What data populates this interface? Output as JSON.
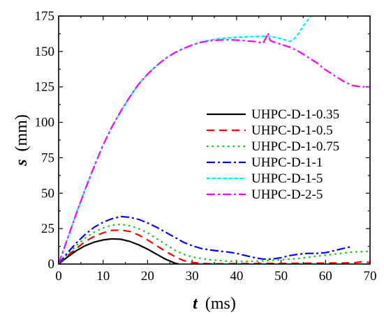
{
  "chart_data": {
    "type": "line",
    "xlabel_var": "t",
    "xlabel_unit": "(ms)",
    "ylabel_var": "s",
    "ylabel_unit": "(mm)",
    "xlim": [
      0,
      70
    ],
    "ylim": [
      0,
      175
    ],
    "xticks": [
      0,
      10,
      20,
      30,
      40,
      50,
      60,
      70
    ],
    "yticks": [
      0,
      25,
      50,
      75,
      100,
      125,
      150,
      175
    ],
    "grid": false,
    "legend_position": "right-middle",
    "series": [
      {
        "name": "UHPC-D-1-0.35",
        "color": "#000000",
        "dash": "solid",
        "x": [
          0,
          2,
          4,
          6,
          8,
          10,
          12,
          14,
          16,
          18,
          20,
          22,
          24,
          26,
          27
        ],
        "y": [
          0,
          5,
          9.5,
          13,
          15.5,
          17,
          17.8,
          17.5,
          16,
          13.5,
          10.5,
          7,
          3.5,
          0.8,
          0
        ]
      },
      {
        "name": "UHPC-D-1-0.5",
        "color": "#ff0000",
        "dash": "dashed",
        "x": [
          0,
          2,
          4,
          6,
          8,
          10,
          12,
          14,
          16,
          18,
          20,
          22,
          24,
          26,
          28,
          30,
          32,
          34,
          66,
          68,
          70
        ],
        "y": [
          0,
          6,
          11,
          16,
          19.5,
          22,
          23.8,
          24,
          23,
          20.5,
          17,
          13,
          9,
          5.5,
          2.5,
          1.2,
          0.5,
          0.2,
          0.8,
          1.5,
          1.2
        ]
      },
      {
        "name": "UHPC-D-1-0.75",
        "color": "#00cc00",
        "dash": "dotted",
        "x": [
          0,
          2,
          4,
          6,
          8,
          10,
          12,
          14,
          16,
          18,
          20,
          22,
          24,
          26,
          28,
          30,
          34,
          38,
          42,
          46,
          50,
          54,
          58,
          62,
          66,
          70
        ],
        "y": [
          0,
          7,
          13,
          18.5,
          22.5,
          25.5,
          27.5,
          28,
          27,
          25,
          22,
          18,
          14,
          10,
          7,
          5,
          3,
          2,
          1.8,
          2.2,
          3,
          4,
          5.5,
          7,
          8.5,
          9
        ]
      },
      {
        "name": "UHPC-D-1-1",
        "color": "#0000ff",
        "dash": "dashdot",
        "x": [
          0,
          2,
          4,
          6,
          8,
          10,
          12,
          14,
          16,
          18,
          20,
          22,
          24,
          26,
          28,
          30,
          32,
          34,
          36,
          38,
          40,
          42,
          44,
          46,
          48,
          50,
          52,
          54,
          56,
          58,
          60,
          62,
          64,
          66
        ],
        "y": [
          0,
          8,
          15,
          21,
          26,
          29.5,
          32,
          33.5,
          33,
          31.5,
          29,
          26,
          22.5,
          19,
          15.5,
          13,
          11,
          10,
          9.2,
          8.5,
          7.5,
          6,
          4.5,
          3.5,
          3.5,
          4.5,
          6,
          7,
          7.5,
          7.5,
          8,
          9.5,
          11,
          12.5
        ]
      },
      {
        "name": "UHPC-D-1-5",
        "color": "#00eeee",
        "dash": "shortdash",
        "x": [
          0,
          2,
          4,
          6,
          8,
          10,
          12,
          14,
          16,
          18,
          20,
          22,
          24,
          26,
          28,
          30,
          32,
          34,
          36,
          38,
          40,
          42,
          44,
          46,
          48,
          50,
          52,
          53,
          54,
          55,
          56,
          57
        ],
        "y": [
          0,
          18,
          36,
          53,
          69,
          84,
          97,
          108,
          118,
          127,
          134,
          140,
          145,
          149,
          152,
          154.5,
          156.5,
          158,
          159,
          159.5,
          160,
          160.3,
          160.5,
          160.6,
          160.3,
          159,
          157,
          159,
          163,
          168,
          172,
          176
        ]
      },
      {
        "name": "UHPC-D-2-5",
        "color": "#ff00ff",
        "dash": "dashdot",
        "x": [
          0,
          2,
          4,
          6,
          8,
          10,
          12,
          14,
          16,
          18,
          20,
          22,
          24,
          26,
          28,
          30,
          32,
          34,
          36,
          38,
          40,
          42,
          44,
          46,
          46.5,
          47,
          47.5,
          48,
          50,
          52,
          54,
          56,
          58,
          60,
          62,
          64,
          66,
          68,
          70
        ],
        "y": [
          0,
          18,
          36,
          53,
          69,
          84,
          97,
          108,
          118,
          127,
          134,
          140,
          145,
          149,
          152,
          154.5,
          156.5,
          157.5,
          158,
          158.3,
          158,
          157.5,
          157,
          156,
          159,
          163,
          158,
          157,
          155,
          153,
          150,
          146,
          142,
          137,
          133,
          129,
          126,
          125,
          125
        ]
      }
    ]
  }
}
